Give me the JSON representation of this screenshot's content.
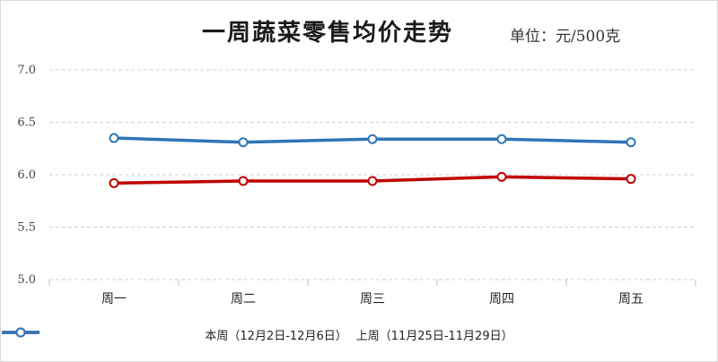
{
  "title": "一周蔬菜零售均价走势",
  "unit": "单位：元/500克",
  "chart_data": {
    "type": "line",
    "title": "一周蔬菜零售均价走势",
    "subtitle": "单位：元/500克",
    "categories": [
      "周一",
      "周二",
      "周三",
      "周四",
      "周五"
    ],
    "yticks": [
      "5.0",
      "5.5",
      "6.0",
      "6.5",
      "7.0"
    ],
    "ylim": [
      5.0,
      7.0
    ],
    "grid": true,
    "legend_position": "bottom",
    "series": [
      {
        "name": "本周（12月2日-12月6日）",
        "color": "#c00000",
        "values": [
          5.92,
          5.94,
          5.94,
          5.98,
          5.96
        ]
      },
      {
        "name": "上周（11月25日-11月29日）",
        "color": "#2e75b6",
        "values": [
          6.35,
          6.31,
          6.34,
          6.34,
          6.31
        ]
      }
    ]
  }
}
